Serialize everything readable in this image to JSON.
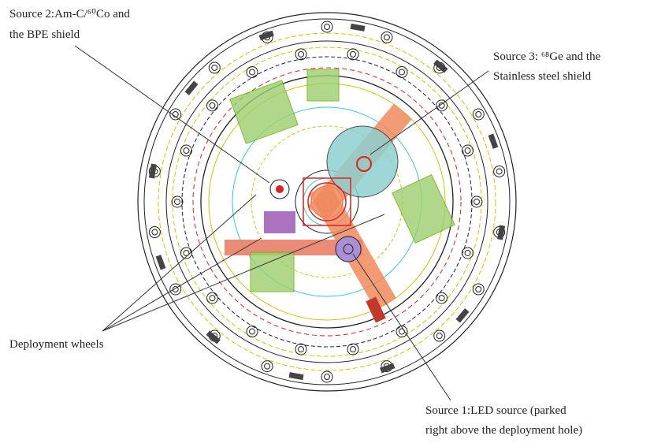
{
  "labels": {
    "source2": [
      "Source 2:Am-C/⁶⁰Co and",
      "the BPE shield"
    ],
    "source3": [
      "Source 3: ⁶⁸Ge and the",
      "Stainless steel shield"
    ],
    "wheels": [
      "Deployment wheels"
    ],
    "source1": [
      "Source 1:LED source (parked",
      "right above the deployment hole)"
    ]
  }
}
